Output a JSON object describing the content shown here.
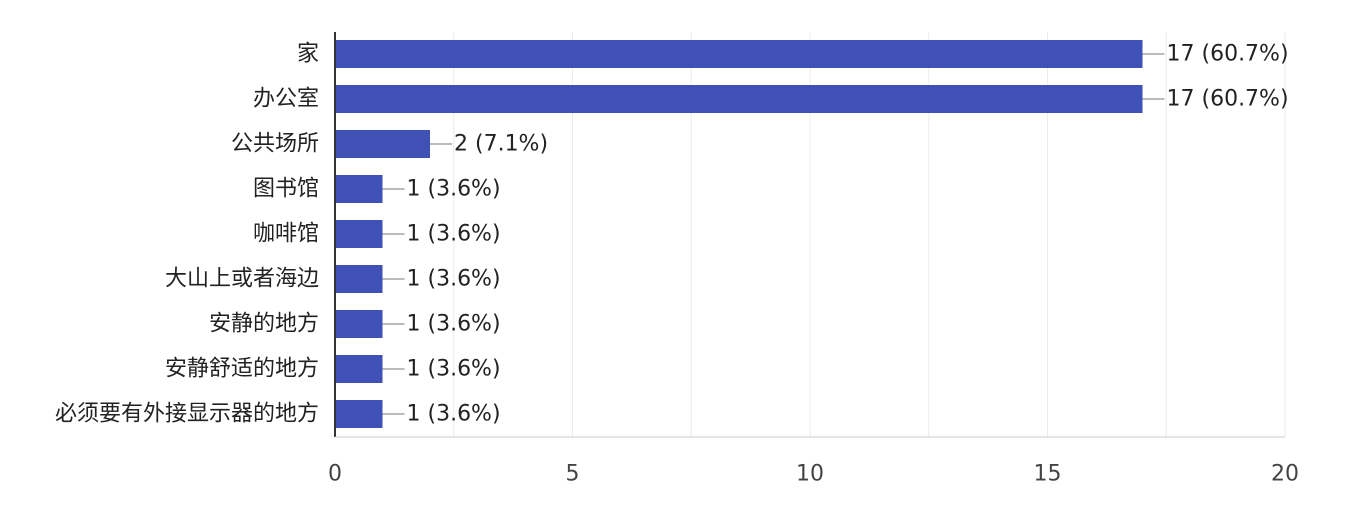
{
  "chart_data": {
    "type": "bar",
    "orientation": "horizontal",
    "categories": [
      "家",
      "办公室",
      "公共场所",
      "图书馆",
      "咖啡馆",
      "大山上或者海边",
      "安静的地方",
      "安静舒适的地方",
      "必须要有外接显示器的地方"
    ],
    "values": [
      17,
      17,
      2,
      1,
      1,
      1,
      1,
      1,
      1
    ],
    "value_labels": [
      "17 (60.7%)",
      "17 (60.7%)",
      "2 (7.1%)",
      "1 (3.6%)",
      "1 (3.6%)",
      "1 (3.6%)",
      "1 (3.6%)",
      "1 (3.6%)",
      "1 (3.6%)"
    ],
    "xlim": [
      0,
      20
    ],
    "x_ticks": [
      0,
      5,
      10,
      15,
      20
    ],
    "x_tick_labels": [
      "0",
      "5",
      "10",
      "15",
      "20"
    ],
    "grid": true,
    "bar_color": "#3f51b5"
  }
}
